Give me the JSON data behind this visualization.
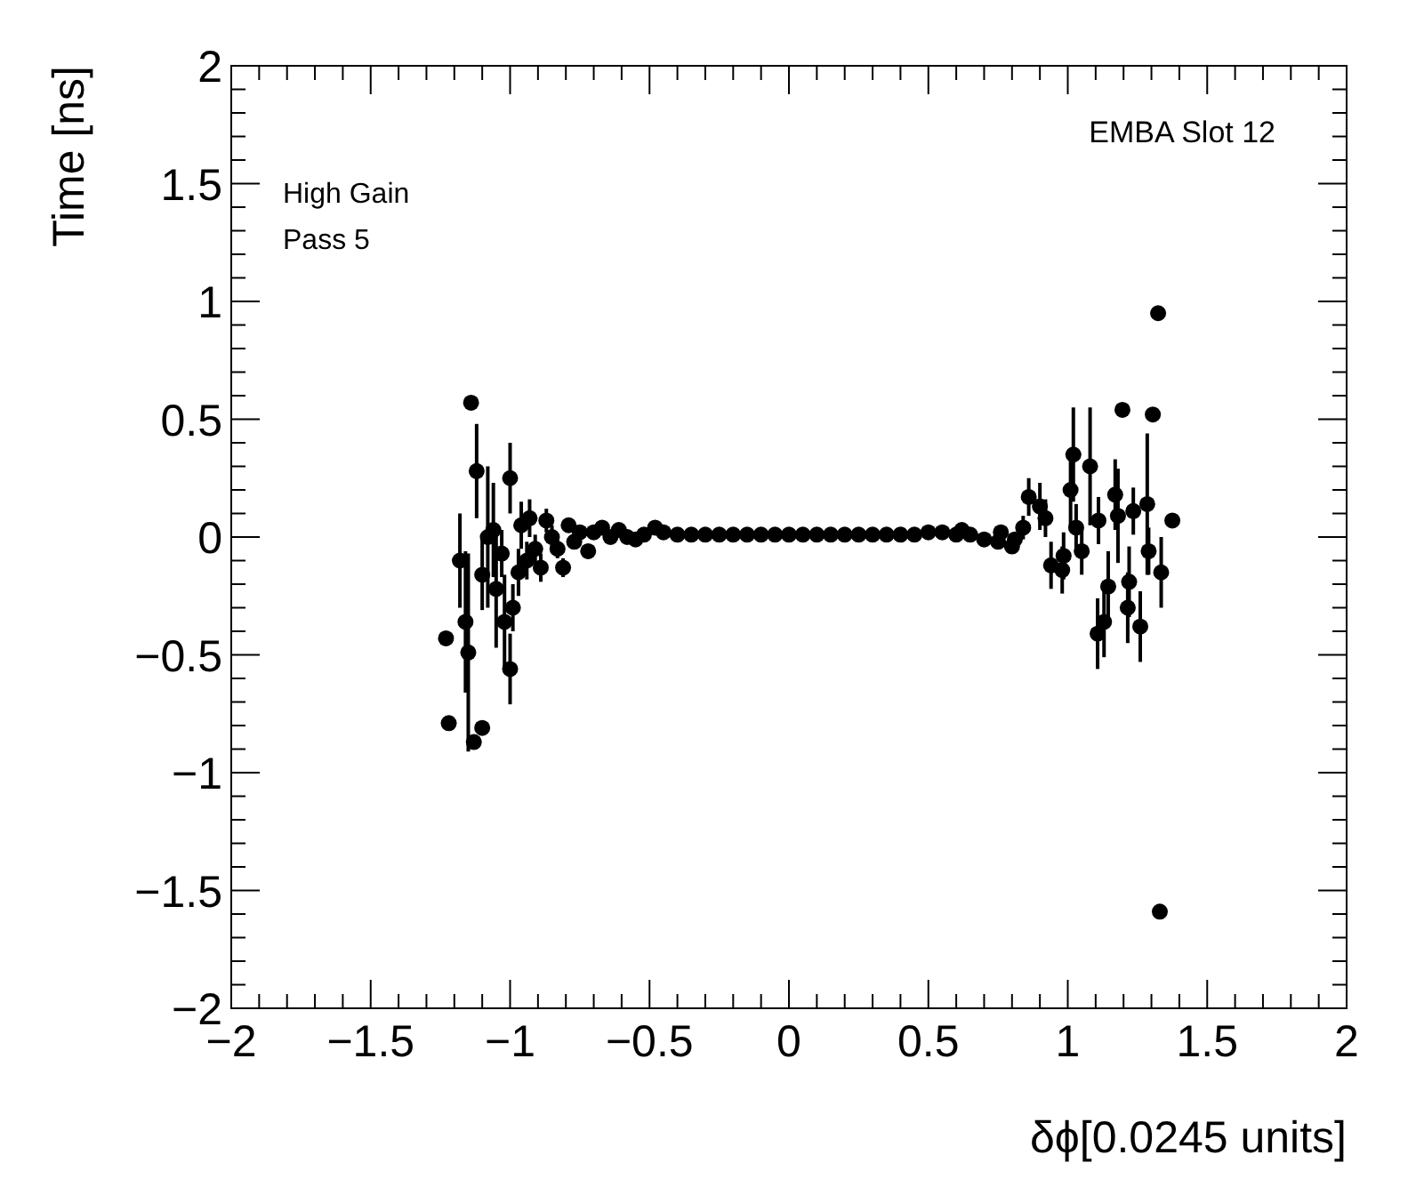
{
  "chart_data": {
    "type": "scatter",
    "xlabel": "δϕ[0.0245 units]",
    "ylabel": "Time [ns]",
    "annotations": [
      "EMBA Slot 12",
      "High Gain",
      "Pass 5"
    ],
    "marker": "circle",
    "series": [
      {
        "color": "#000000",
        "x": [
          -1.23,
          -1.22,
          -1.18,
          -1.16,
          -1.15,
          -1.14,
          -1.13,
          -1.12,
          -1.1,
          -1.1,
          -1.08,
          -1.06,
          -1.05,
          -1.03,
          -1.02,
          -1.0,
          -1.0,
          -0.99,
          -0.97,
          -0.96,
          -0.94,
          -0.93,
          -0.91,
          -0.89,
          -0.87,
          -0.85,
          -0.83,
          -0.81,
          -0.79,
          -0.77,
          -0.75,
          -0.72,
          -0.7,
          -0.67,
          -0.64,
          -0.61,
          -0.58,
          -0.55,
          -0.52,
          -0.48,
          -0.45,
          -0.4,
          -0.35,
          -0.3,
          -0.25,
          -0.2,
          -0.15,
          -0.1,
          -0.05,
          0,
          0.05,
          0.1,
          0.15,
          0.2,
          0.25,
          0.3,
          0.35,
          0.4,
          0.45,
          0.5,
          0.55,
          0.6,
          0.62,
          0.65,
          0.7,
          0.75,
          0.76,
          0.8,
          0.81,
          0.84,
          0.86,
          0.9,
          0.92,
          0.94,
          0.98,
          0.985,
          1.01,
          1.02,
          1.03,
          1.05,
          1.08,
          1.107,
          1.11,
          1.13,
          1.145,
          1.17,
          1.18,
          1.196,
          1.215,
          1.22,
          1.235,
          1.26,
          1.285,
          1.29,
          1.305,
          1.324,
          1.33,
          1.335,
          1.375
        ],
        "values": [
          -0.43,
          -0.79,
          -0.1,
          -0.36,
          -0.49,
          0.57,
          -0.87,
          0.28,
          -0.81,
          -0.16,
          0.0,
          0.03,
          -0.22,
          -0.07,
          -0.36,
          0.25,
          -0.56,
          -0.3,
          -0.15,
          0.05,
          -0.1,
          0.08,
          -0.05,
          -0.13,
          0.07,
          0.0,
          -0.05,
          -0.13,
          0.05,
          -0.02,
          0.02,
          -0.06,
          0.02,
          0.04,
          0.0,
          0.03,
          0.0,
          -0.01,
          0.01,
          0.04,
          0.02,
          0.01,
          0.01,
          0.01,
          0.01,
          0.01,
          0.01,
          0.01,
          0.01,
          0.01,
          0.01,
          0.01,
          0.01,
          0.01,
          0.01,
          0.01,
          0.01,
          0.01,
          0.01,
          0.02,
          0.02,
          0.01,
          0.03,
          0.01,
          -0.01,
          -0.02,
          0.02,
          -0.04,
          -0.01,
          0.04,
          0.17,
          0.13,
          0.08,
          -0.12,
          -0.14,
          -0.08,
          0.2,
          0.35,
          0.04,
          -0.06,
          0.3,
          -0.41,
          0.07,
          -0.36,
          -0.21,
          0.18,
          0.09,
          0.54,
          -0.3,
          -0.19,
          0.11,
          -0.38,
          0.14,
          -0.06,
          0.52,
          0.95,
          -1.59,
          -0.15,
          0.07
        ],
        "errors": [
          null,
          null,
          0.2,
          0.3,
          0.42,
          null,
          null,
          0.2,
          null,
          0.15,
          0.3,
          0.2,
          0.25,
          0.1,
          0.2,
          0.15,
          0.15,
          0.1,
          0.1,
          0.1,
          0.08,
          0.08,
          0.06,
          0.06,
          0.05,
          0.05,
          0.04,
          0.04,
          0.03,
          0.03,
          null,
          null,
          null,
          null,
          null,
          null,
          null,
          null,
          null,
          null,
          null,
          null,
          null,
          null,
          null,
          null,
          null,
          null,
          null,
          null,
          null,
          null,
          null,
          null,
          null,
          null,
          null,
          null,
          null,
          null,
          null,
          null,
          null,
          null,
          null,
          null,
          null,
          null,
          null,
          0.05,
          0.08,
          0.1,
          0.08,
          0.1,
          0.1,
          0.1,
          0.15,
          0.2,
          0.1,
          0.1,
          0.25,
          0.15,
          0.1,
          0.15,
          0.15,
          0.15,
          0.2,
          null,
          0.15,
          0.15,
          0.1,
          0.15,
          0.3,
          0.1,
          null,
          null,
          null,
          0.15,
          null
        ]
      }
    ],
    "xlim": [
      -2,
      2
    ],
    "ylim": [
      -2,
      2
    ],
    "xticks": [
      -2,
      {
        "value": -1.9,
        "label": null
      },
      {
        "value": -1.8,
        "label": null
      },
      {
        "value": -1.7,
        "label": null
      },
      {
        "value": -1.6,
        "label": null
      },
      -1.5,
      {
        "value": -1.4,
        "label": null
      },
      {
        "value": -1.3,
        "label": null
      },
      {
        "value": -1.2,
        "label": null
      },
      {
        "value": -1.1,
        "label": null
      },
      -1,
      {
        "value": -0.9,
        "label": null
      },
      {
        "value": -0.8,
        "label": null
      },
      {
        "value": -0.7,
        "label": null
      },
      {
        "value": -0.6,
        "label": null
      },
      -0.5,
      {
        "value": -0.4,
        "label": null
      },
      {
        "value": -0.3,
        "label": null
      },
      {
        "value": -0.2,
        "label": null
      },
      {
        "value": -0.1,
        "label": null
      },
      0,
      {
        "value": 0.1,
        "label": null
      },
      {
        "value": 0.2,
        "label": null
      },
      {
        "value": 0.3,
        "label": null
      },
      {
        "value": 0.4,
        "label": null
      },
      0.5,
      {
        "value": 0.6,
        "label": null
      },
      {
        "value": 0.7,
        "label": null
      },
      {
        "value": 0.8,
        "label": null
      },
      {
        "value": 0.9,
        "label": null
      },
      1,
      {
        "value": 1.1,
        "label": null
      },
      {
        "value": 1.2,
        "label": null
      },
      {
        "value": 1.3,
        "label": null
      },
      {
        "value": 1.4,
        "label": null
      },
      1.5,
      {
        "value": 1.6,
        "label": null
      },
      {
        "value": 1.7,
        "label": null
      },
      {
        "value": 1.8,
        "label": null
      },
      {
        "value": 1.9,
        "label": null
      },
      2
    ],
    "yticks": [
      -2,
      {
        "value": -1.9,
        "label": null
      },
      {
        "value": -1.8,
        "label": null
      },
      {
        "value": -1.7,
        "label": null
      },
      {
        "value": -1.6,
        "label": null
      },
      -1.5,
      {
        "value": -1.4,
        "label": null
      },
      {
        "value": -1.3,
        "label": null
      },
      {
        "value": -1.2,
        "label": null
      },
      {
        "value": -1.1,
        "label": null
      },
      -1,
      {
        "value": -0.9,
        "label": null
      },
      {
        "value": -0.8,
        "label": null
      },
      {
        "value": -0.7,
        "label": null
      },
      {
        "value": -0.6,
        "label": null
      },
      -0.5,
      {
        "value": -0.4,
        "label": null
      },
      {
        "value": -0.3,
        "label": null
      },
      {
        "value": -0.2,
        "label": null
      },
      {
        "value": -0.1,
        "label": null
      },
      0,
      {
        "value": 0.1,
        "label": null
      },
      {
        "value": 0.2,
        "label": null
      },
      {
        "value": 0.3,
        "label": null
      },
      {
        "value": 0.4,
        "label": null
      },
      0.5,
      {
        "value": 0.6,
        "label": null
      },
      {
        "value": 0.7,
        "label": null
      },
      {
        "value": 0.8,
        "label": null
      },
      {
        "value": 0.9,
        "label": null
      },
      1,
      {
        "value": 1.1,
        "label": null
      },
      {
        "value": 1.2,
        "label": null
      },
      {
        "value": 1.3,
        "label": null
      },
      {
        "value": 1.4,
        "label": null
      },
      1.5,
      {
        "value": 1.6,
        "label": null
      },
      {
        "value": 1.7,
        "label": null
      },
      {
        "value": 1.8,
        "label": null
      },
      {
        "value": 1.9,
        "label": null
      },
      2
    ]
  }
}
